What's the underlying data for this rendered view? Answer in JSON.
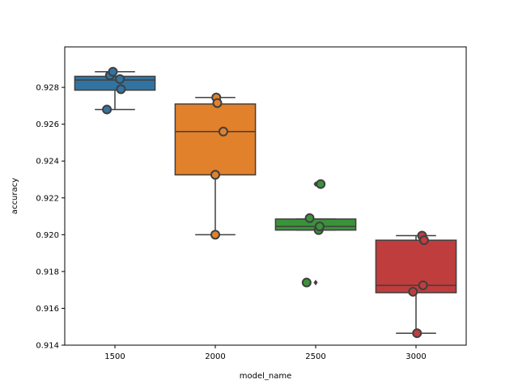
{
  "chart_data": {
    "type": "box",
    "xlabel": "model_name",
    "ylabel": "accuracy",
    "ylim": [
      0.914,
      0.9302
    ],
    "yticks": [
      0.914,
      0.916,
      0.918,
      0.92,
      0.922,
      0.924,
      0.926,
      0.928
    ],
    "ytick_labels": [
      "0.914",
      "0.916",
      "0.918",
      "0.920",
      "0.922",
      "0.924",
      "0.926",
      "0.928"
    ],
    "categories": [
      "1500",
      "2000",
      "2500",
      "3000"
    ],
    "colors": [
      "#3274a1",
      "#e1812c",
      "#3a923a",
      "#c03d3e"
    ],
    "edge_color": "#3f3f3f",
    "grid": false,
    "legend": "none",
    "boxes": [
      {
        "category": "1500",
        "q1": 0.92785,
        "median": 0.9284,
        "q3": 0.9286,
        "whisker_low": 0.9268,
        "whisker_high": 0.92885,
        "outliers": []
      },
      {
        "category": "2000",
        "q1": 0.92325,
        "median": 0.9256,
        "q3": 0.9271,
        "whisker_low": 0.92,
        "whisker_high": 0.92745,
        "outliers": []
      },
      {
        "category": "2500",
        "q1": 0.92025,
        "median": 0.92045,
        "q3": 0.92085,
        "whisker_low": 0.92025,
        "whisker_high": 0.92085,
        "outliers": [
          0.92275,
          0.9174
        ]
      },
      {
        "category": "3000",
        "q1": 0.91685,
        "median": 0.91725,
        "q3": 0.9197,
        "whisker_low": 0.91465,
        "whisker_high": 0.91995,
        "outliers": []
      }
    ],
    "points": [
      {
        "category": "1500",
        "x": 1460,
        "y": 0.9268
      },
      {
        "category": "1500",
        "x": 1475,
        "y": 0.92865
      },
      {
        "category": "1500",
        "x": 1490,
        "y": 0.92885
      },
      {
        "category": "1500",
        "x": 1525,
        "y": 0.92845
      },
      {
        "category": "1500",
        "x": 1530,
        "y": 0.9279
      },
      {
        "category": "2000",
        "x": 2000,
        "y": 0.92
      },
      {
        "category": "2000",
        "x": 2000,
        "y": 0.92325
      },
      {
        "category": "2000",
        "x": 2005,
        "y": 0.92745
      },
      {
        "category": "2000",
        "x": 2010,
        "y": 0.92715
      },
      {
        "category": "2000",
        "x": 2040,
        "y": 0.9256
      },
      {
        "category": "2500",
        "x": 2455,
        "y": 0.9174
      },
      {
        "category": "2500",
        "x": 2470,
        "y": 0.9209
      },
      {
        "category": "2500",
        "x": 2515,
        "y": 0.92025
      },
      {
        "category": "2500",
        "x": 2520,
        "y": 0.92045
      },
      {
        "category": "2500",
        "x": 2525,
        "y": 0.92275
      },
      {
        "category": "3000",
        "x": 2985,
        "y": 0.9169
      },
      {
        "category": "3000",
        "x": 3005,
        "y": 0.91465
      },
      {
        "category": "3000",
        "x": 3030,
        "y": 0.91995
      },
      {
        "category": "3000",
        "x": 3035,
        "y": 0.91725
      },
      {
        "category": "3000",
        "x": 3040,
        "y": 0.9197
      }
    ]
  }
}
